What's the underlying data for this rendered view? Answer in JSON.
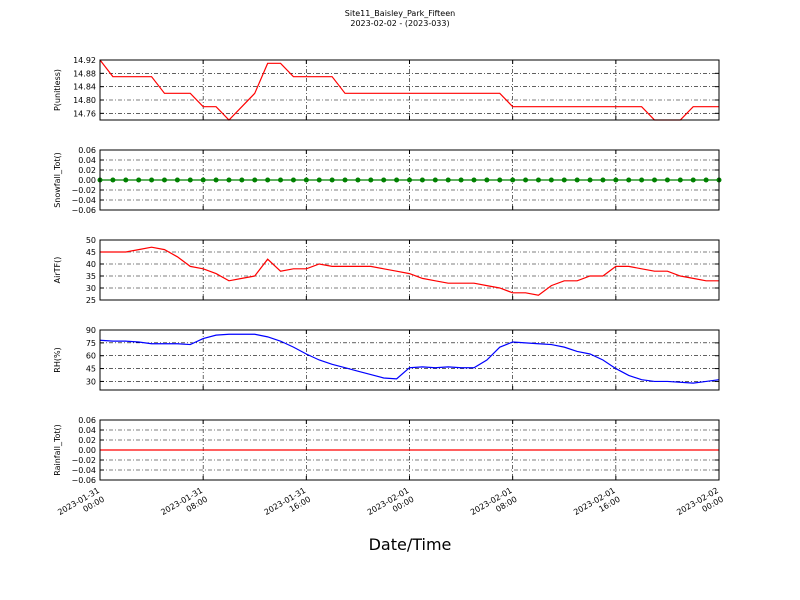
{
  "title": "Site11_Baisley_Park_Fifteen",
  "subtitle": "2023-02-02 - (2023-033)",
  "xlabel": "Date/Time",
  "chart_data": [
    {
      "type": "line",
      "ylabel": "P(unitless)",
      "ylim": [
        14.74,
        14.92
      ],
      "yticks": [
        14.76,
        {
          "value": 14.8,
          "label": "14.80"
        },
        14.84,
        14.88,
        14.92
      ],
      "xlim": [
        "2023-01-31 00:00",
        "2023-02-02 00:00"
      ],
      "xticks": [
        "2023-01-31 00:00",
        "2023-01-31 08:00",
        "2023-01-31 16:00",
        "2023-02-01 00:00",
        "2023-02-01 08:00",
        "2023-02-01 16:00",
        "2023-02-02 00:00"
      ],
      "grid": true,
      "x": [
        "2023-01-31 00:00",
        "2023-01-31 01:00",
        "2023-01-31 02:00",
        "2023-01-31 03:00",
        "2023-01-31 04:00",
        "2023-01-31 05:00",
        "2023-01-31 06:00",
        "2023-01-31 07:00",
        "2023-01-31 08:00",
        "2023-01-31 09:00",
        "2023-01-31 10:00",
        "2023-01-31 11:00",
        "2023-01-31 12:00",
        "2023-01-31 13:00",
        "2023-01-31 14:00",
        "2023-01-31 15:00",
        "2023-01-31 16:00",
        "2023-01-31 17:00",
        "2023-01-31 18:00",
        "2023-01-31 19:00",
        "2023-01-31 20:00",
        "2023-01-31 21:00",
        "2023-01-31 22:00",
        "2023-01-31 23:00",
        "2023-02-01 00:00",
        "2023-02-01 01:00",
        "2023-02-01 02:00",
        "2023-02-01 03:00",
        "2023-02-01 04:00",
        "2023-02-01 05:00",
        "2023-02-01 06:00",
        "2023-02-01 07:00",
        "2023-02-01 08:00",
        "2023-02-01 09:00",
        "2023-02-01 10:00",
        "2023-02-01 11:00",
        "2023-02-01 12:00",
        "2023-02-01 13:00",
        "2023-02-01 14:00",
        "2023-02-01 15:00",
        "2023-02-01 16:00",
        "2023-02-01 17:00",
        "2023-02-01 18:00",
        "2023-02-01 19:00",
        "2023-02-01 20:00",
        "2023-02-01 21:00",
        "2023-02-01 22:00",
        "2023-02-01 23:00",
        "2023-02-02 00:00"
      ],
      "series": [
        {
          "color": "#ff0000",
          "values": [
            14.92,
            14.87,
            14.87,
            14.87,
            14.87,
            14.82,
            14.82,
            14.82,
            14.78,
            14.78,
            14.74,
            14.78,
            14.82,
            14.91,
            14.91,
            14.87,
            14.87,
            14.87,
            14.87,
            14.82,
            14.82,
            14.82,
            14.82,
            14.82,
            14.82,
            14.82,
            14.82,
            14.82,
            14.82,
            14.82,
            14.82,
            14.82,
            14.78,
            14.78,
            14.78,
            14.78,
            14.78,
            14.78,
            14.78,
            14.78,
            14.78,
            14.78,
            14.78,
            14.74,
            14.74,
            14.74,
            14.78,
            14.78,
            14.78
          ]
        }
      ]
    },
    {
      "type": "line",
      "ylabel": "Snowfall_Tot()",
      "ylim": [
        -0.06,
        0.06
      ],
      "yticks": [
        {
          "value": -0.06,
          "label": "−0.06"
        },
        {
          "value": -0.04,
          "label": "−0.04"
        },
        {
          "value": -0.02,
          "label": "−0.02"
        },
        {
          "value": 0,
          "label": "0.00"
        },
        0.02,
        0.04,
        0.06
      ],
      "xlim": [
        "2023-01-31 00:00",
        "2023-02-02 00:00"
      ],
      "xticks": [
        "2023-01-31 00:00",
        "2023-01-31 08:00",
        "2023-01-31 16:00",
        "2023-02-01 00:00",
        "2023-02-01 08:00",
        "2023-02-01 16:00",
        "2023-02-02 00:00"
      ],
      "grid": true,
      "marker": "o",
      "x": [
        "2023-01-31 00:00",
        "2023-01-31 01:00",
        "2023-01-31 02:00",
        "2023-01-31 03:00",
        "2023-01-31 04:00",
        "2023-01-31 05:00",
        "2023-01-31 06:00",
        "2023-01-31 07:00",
        "2023-01-31 08:00",
        "2023-01-31 09:00",
        "2023-01-31 10:00",
        "2023-01-31 11:00",
        "2023-01-31 12:00",
        "2023-01-31 13:00",
        "2023-01-31 14:00",
        "2023-01-31 15:00",
        "2023-01-31 16:00",
        "2023-01-31 17:00",
        "2023-01-31 18:00",
        "2023-01-31 19:00",
        "2023-01-31 20:00",
        "2023-01-31 21:00",
        "2023-01-31 22:00",
        "2023-01-31 23:00",
        "2023-02-01 00:00",
        "2023-02-01 01:00",
        "2023-02-01 02:00",
        "2023-02-01 03:00",
        "2023-02-01 04:00",
        "2023-02-01 05:00",
        "2023-02-01 06:00",
        "2023-02-01 07:00",
        "2023-02-01 08:00",
        "2023-02-01 09:00",
        "2023-02-01 10:00",
        "2023-02-01 11:00",
        "2023-02-01 12:00",
        "2023-02-01 13:00",
        "2023-02-01 14:00",
        "2023-02-01 15:00",
        "2023-02-01 16:00",
        "2023-02-01 17:00",
        "2023-02-01 18:00",
        "2023-02-01 19:00",
        "2023-02-01 20:00",
        "2023-02-01 21:00",
        "2023-02-01 22:00",
        "2023-02-01 23:00",
        "2023-02-02 00:00"
      ],
      "series": [
        {
          "color": "#008000",
          "values": [
            0,
            0,
            0,
            0,
            0,
            0,
            0,
            0,
            0,
            0,
            0,
            0,
            0,
            0,
            0,
            0,
            0,
            0,
            0,
            0,
            0,
            0,
            0,
            0,
            0,
            0,
            0,
            0,
            0,
            0,
            0,
            0,
            0,
            0,
            0,
            0,
            0,
            0,
            0,
            0,
            0,
            0,
            0,
            0,
            0,
            0,
            0,
            0,
            0
          ]
        }
      ]
    },
    {
      "type": "line",
      "ylabel": "AirTF()",
      "ylim": [
        25,
        50
      ],
      "yticks": [
        25,
        30,
        35,
        40,
        45,
        50
      ],
      "xlim": [
        "2023-01-31 00:00",
        "2023-02-02 00:00"
      ],
      "xticks": [
        "2023-01-31 00:00",
        "2023-01-31 08:00",
        "2023-01-31 16:00",
        "2023-02-01 00:00",
        "2023-02-01 08:00",
        "2023-02-01 16:00",
        "2023-02-02 00:00"
      ],
      "grid": true,
      "x": [
        "2023-01-31 00:00",
        "2023-01-31 01:00",
        "2023-01-31 02:00",
        "2023-01-31 03:00",
        "2023-01-31 04:00",
        "2023-01-31 05:00",
        "2023-01-31 06:00",
        "2023-01-31 07:00",
        "2023-01-31 08:00",
        "2023-01-31 09:00",
        "2023-01-31 10:00",
        "2023-01-31 11:00",
        "2023-01-31 12:00",
        "2023-01-31 13:00",
        "2023-01-31 14:00",
        "2023-01-31 15:00",
        "2023-01-31 16:00",
        "2023-01-31 17:00",
        "2023-01-31 18:00",
        "2023-01-31 19:00",
        "2023-01-31 20:00",
        "2023-01-31 21:00",
        "2023-01-31 22:00",
        "2023-01-31 23:00",
        "2023-02-01 00:00",
        "2023-02-01 01:00",
        "2023-02-01 02:00",
        "2023-02-01 03:00",
        "2023-02-01 04:00",
        "2023-02-01 05:00",
        "2023-02-01 06:00",
        "2023-02-01 07:00",
        "2023-02-01 08:00",
        "2023-02-01 09:00",
        "2023-02-01 10:00",
        "2023-02-01 11:00",
        "2023-02-01 12:00",
        "2023-02-01 13:00",
        "2023-02-01 14:00",
        "2023-02-01 15:00",
        "2023-02-01 16:00",
        "2023-02-01 17:00",
        "2023-02-01 18:00",
        "2023-02-01 19:00",
        "2023-02-01 20:00",
        "2023-02-01 21:00",
        "2023-02-01 22:00",
        "2023-02-01 23:00",
        "2023-02-02 00:00"
      ],
      "series": [
        {
          "color": "#ff0000",
          "values": [
            45,
            45,
            45,
            46,
            47,
            46,
            43,
            39,
            38,
            36,
            33,
            34,
            35,
            42,
            37,
            38,
            38,
            40,
            39,
            39,
            39,
            39,
            38,
            37,
            36,
            34,
            33,
            32,
            32,
            32,
            31,
            30,
            28,
            28,
            27,
            31,
            33,
            33,
            35,
            35,
            39,
            39,
            38,
            37,
            37,
            35,
            34,
            33,
            33
          ]
        }
      ]
    },
    {
      "type": "line",
      "ylabel": "RH(%)",
      "ylim": [
        20,
        90
      ],
      "yticks": [
        30,
        45,
        60,
        75,
        90
      ],
      "xlim": [
        "2023-01-31 00:00",
        "2023-02-02 00:00"
      ],
      "xticks": [
        "2023-01-31 00:00",
        "2023-01-31 08:00",
        "2023-01-31 16:00",
        "2023-02-01 00:00",
        "2023-02-01 08:00",
        "2023-02-01 16:00",
        "2023-02-02 00:00"
      ],
      "grid": true,
      "x": [
        "2023-01-31 00:00",
        "2023-01-31 01:00",
        "2023-01-31 02:00",
        "2023-01-31 03:00",
        "2023-01-31 04:00",
        "2023-01-31 05:00",
        "2023-01-31 06:00",
        "2023-01-31 07:00",
        "2023-01-31 08:00",
        "2023-01-31 09:00",
        "2023-01-31 10:00",
        "2023-01-31 11:00",
        "2023-01-31 12:00",
        "2023-01-31 13:00",
        "2023-01-31 14:00",
        "2023-01-31 15:00",
        "2023-01-31 16:00",
        "2023-01-31 17:00",
        "2023-01-31 18:00",
        "2023-01-31 19:00",
        "2023-01-31 20:00",
        "2023-01-31 21:00",
        "2023-01-31 22:00",
        "2023-01-31 23:00",
        "2023-02-01 00:00",
        "2023-02-01 01:00",
        "2023-02-01 02:00",
        "2023-02-01 03:00",
        "2023-02-01 04:00",
        "2023-02-01 05:00",
        "2023-02-01 06:00",
        "2023-02-01 07:00",
        "2023-02-01 08:00",
        "2023-02-01 09:00",
        "2023-02-01 10:00",
        "2023-02-01 11:00",
        "2023-02-01 12:00",
        "2023-02-01 13:00",
        "2023-02-01 14:00",
        "2023-02-01 15:00",
        "2023-02-01 16:00",
        "2023-02-01 17:00",
        "2023-02-01 18:00",
        "2023-02-01 19:00",
        "2023-02-01 20:00",
        "2023-02-01 21:00",
        "2023-02-01 22:00",
        "2023-02-01 23:00",
        "2023-02-02 00:00"
      ],
      "series": [
        {
          "color": "#0000ff",
          "values": [
            78,
            77,
            77,
            76,
            74,
            74,
            74,
            73,
            80,
            84,
            85,
            85,
            85,
            82,
            77,
            70,
            62,
            55,
            50,
            46,
            42,
            38,
            34,
            33,
            46,
            47,
            46,
            47,
            46,
            46,
            55,
            70,
            76,
            75,
            74,
            73,
            70,
            65,
            62,
            55,
            45,
            37,
            32,
            30,
            30,
            29,
            28,
            30,
            32
          ]
        }
      ]
    },
    {
      "type": "line",
      "ylabel": "Rainfall_Tot()",
      "ylim": [
        -0.06,
        0.06
      ],
      "yticks": [
        {
          "value": -0.06,
          "label": "−0.06"
        },
        {
          "value": -0.04,
          "label": "−0.04"
        },
        {
          "value": -0.02,
          "label": "−0.02"
        },
        {
          "value": 0,
          "label": "0.00"
        },
        0.02,
        0.04,
        0.06
      ],
      "xlim": [
        "2023-01-31 00:00",
        "2023-02-02 00:00"
      ],
      "xticks": [
        "2023-01-31 00:00",
        "2023-01-31 08:00",
        "2023-01-31 16:00",
        "2023-02-01 00:00",
        "2023-02-01 08:00",
        "2023-02-01 16:00",
        "2023-02-02 00:00"
      ],
      "grid": true,
      "show_xtick_labels": true,
      "x": [
        "2023-01-31 00:00",
        "2023-01-31 01:00",
        "2023-01-31 02:00",
        "2023-01-31 03:00",
        "2023-01-31 04:00",
        "2023-01-31 05:00",
        "2023-01-31 06:00",
        "2023-01-31 07:00",
        "2023-01-31 08:00",
        "2023-01-31 09:00",
        "2023-01-31 10:00",
        "2023-01-31 11:00",
        "2023-01-31 12:00",
        "2023-01-31 13:00",
        "2023-01-31 14:00",
        "2023-01-31 15:00",
        "2023-01-31 16:00",
        "2023-01-31 17:00",
        "2023-01-31 18:00",
        "2023-01-31 19:00",
        "2023-01-31 20:00",
        "2023-01-31 21:00",
        "2023-01-31 22:00",
        "2023-01-31 23:00",
        "2023-02-01 00:00",
        "2023-02-01 01:00",
        "2023-02-01 02:00",
        "2023-02-01 03:00",
        "2023-02-01 04:00",
        "2023-02-01 05:00",
        "2023-02-01 06:00",
        "2023-02-01 07:00",
        "2023-02-01 08:00",
        "2023-02-01 09:00",
        "2023-02-01 10:00",
        "2023-02-01 11:00",
        "2023-02-01 12:00",
        "2023-02-01 13:00",
        "2023-02-01 14:00",
        "2023-02-01 15:00",
        "2023-02-01 16:00",
        "2023-02-01 17:00",
        "2023-02-01 18:00",
        "2023-02-01 19:00",
        "2023-02-01 20:00",
        "2023-02-01 21:00",
        "2023-02-01 22:00",
        "2023-02-01 23:00",
        "2023-02-02 00:00"
      ],
      "series": [
        {
          "color": "#ff0000",
          "values": [
            0,
            0,
            0,
            0,
            0,
            0,
            0,
            0,
            0,
            0,
            0,
            0,
            0,
            0,
            0,
            0,
            0,
            0,
            0,
            0,
            0,
            0,
            0,
            0,
            0,
            0,
            0,
            0,
            0,
            0,
            0,
            0,
            0,
            0,
            0,
            0,
            0,
            0,
            0,
            0,
            0,
            0,
            0,
            0,
            0,
            0,
            0,
            0,
            0
          ]
        }
      ]
    }
  ]
}
